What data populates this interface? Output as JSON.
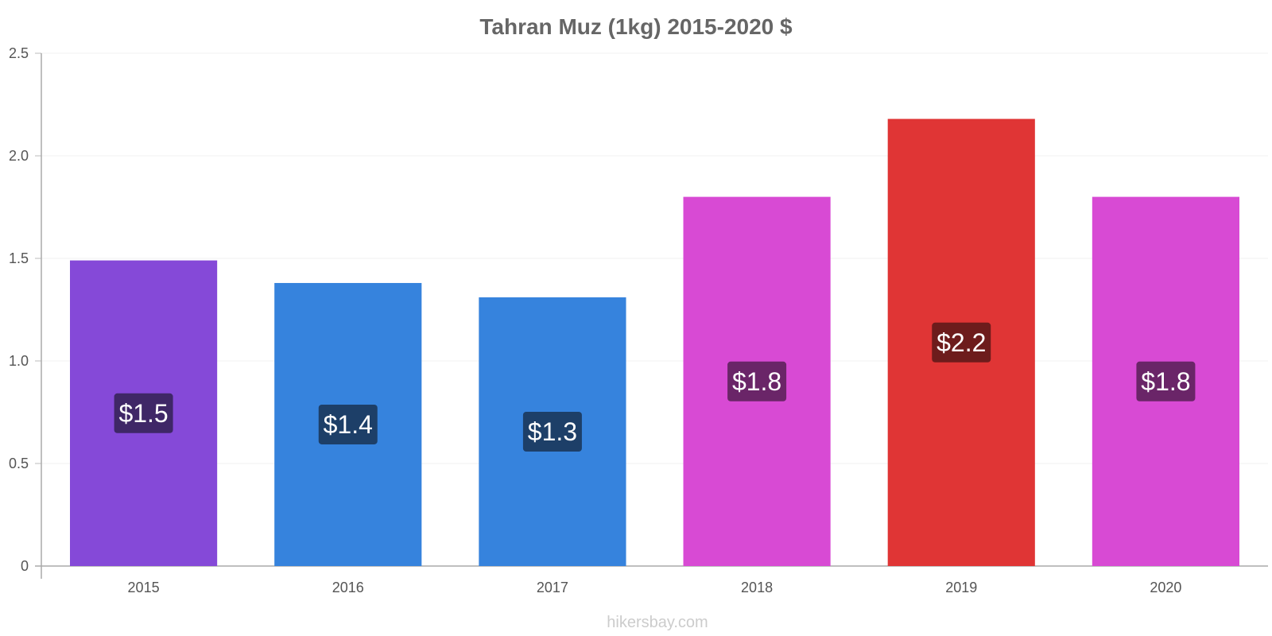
{
  "chart_data": {
    "type": "bar",
    "title": "Tahran Muz (1kg) 2015-2020 $",
    "xlabel": "",
    "ylabel": "",
    "categories": [
      "2015",
      "2016",
      "2017",
      "2018",
      "2019",
      "2020"
    ],
    "values": [
      1.49,
      1.38,
      1.31,
      1.8,
      2.18,
      1.8
    ],
    "data_labels": [
      "$1.5",
      "$1.4",
      "$1.3",
      "$1.8",
      "$2.2",
      "$1.8"
    ],
    "bar_colors": [
      "#8549d8",
      "#3683dd",
      "#3683dd",
      "#d84ad4",
      "#e03535",
      "#d84ad4"
    ],
    "label_bg_colors": [
      "#3f2767",
      "#1d3f68",
      "#1d3f68",
      "#6a2568",
      "#6d1c1c",
      "#6a2568"
    ],
    "ylim": [
      0,
      2.5
    ],
    "y_ticks": [
      0,
      0.5,
      1.0,
      1.5,
      2.0,
      2.5
    ],
    "y_tick_labels": [
      "0",
      "0.5",
      "1.0",
      "1.5",
      "2.0",
      "2.5"
    ],
    "grid": true,
    "legend": "none"
  },
  "footer": {
    "watermark": "hikersbay.com"
  }
}
